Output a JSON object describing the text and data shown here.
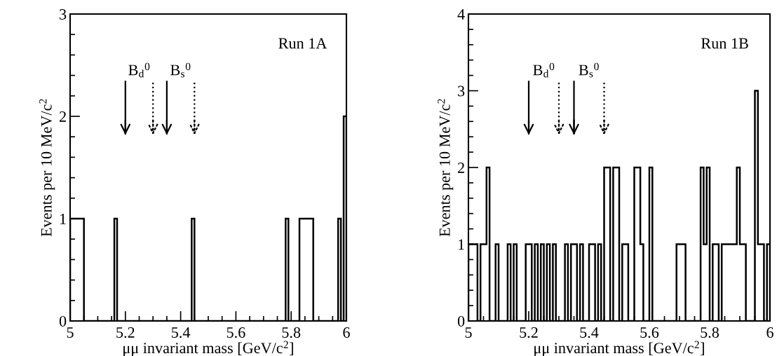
{
  "chart_data": [
    {
      "type": "histogram",
      "color": "#000000",
      "xlabel": "μμ invariant mass [GeV/c$^{2}$]",
      "ylabel": "Events per 10 MeV/c$^{2}$",
      "bins": [
        5.0,
        5.01,
        5.02,
        5.03,
        5.04,
        5.05,
        5.06,
        5.07,
        5.08,
        5.09,
        5.1,
        5.11,
        5.12,
        5.13,
        5.14,
        5.15,
        5.16,
        5.17,
        5.18,
        5.19,
        5.2,
        5.21,
        5.22,
        5.23,
        5.24,
        5.25,
        5.26,
        5.27,
        5.28,
        5.29,
        5.3,
        5.31,
        5.32,
        5.33,
        5.34,
        5.35,
        5.36,
        5.37,
        5.38,
        5.39,
        5.4,
        5.41,
        5.42,
        5.43,
        5.44,
        5.45,
        5.46,
        5.47,
        5.48,
        5.49,
        5.5,
        5.51,
        5.52,
        5.53,
        5.54,
        5.55,
        5.56,
        5.57,
        5.58,
        5.59,
        5.6,
        5.61,
        5.62,
        5.63,
        5.64,
        5.65,
        5.66,
        5.67,
        5.68,
        5.69,
        5.7,
        5.71,
        5.72,
        5.73,
        5.74,
        5.75,
        5.76,
        5.77,
        5.78,
        5.79,
        5.8,
        5.81,
        5.82,
        5.83,
        5.84,
        5.85,
        5.86,
        5.87,
        5.88,
        5.89,
        5.9,
        5.91,
        5.92,
        5.93,
        5.94,
        5.95,
        5.96,
        5.97,
        5.98,
        5.99,
        6.0
      ],
      "values": [
        1,
        1,
        1,
        1,
        1,
        0,
        0,
        0,
        0,
        0,
        0,
        0,
        0,
        0,
        0,
        0,
        1,
        0,
        0,
        0,
        0,
        0,
        0,
        0,
        0,
        0,
        0,
        0,
        0,
        0,
        0,
        0,
        0,
        0,
        0,
        0,
        0,
        0,
        0,
        0,
        0,
        0,
        0,
        0,
        1,
        0,
        0,
        0,
        0,
        0,
        0,
        0,
        0,
        0,
        0,
        0,
        0,
        0,
        0,
        0,
        0,
        0,
        0,
        0,
        0,
        0,
        0,
        0,
        0,
        0,
        0,
        0,
        0,
        0,
        0,
        0,
        0,
        0,
        1,
        0,
        0,
        0,
        0,
        1,
        1,
        1,
        1,
        1,
        0,
        0,
        0,
        0,
        0,
        0,
        0,
        0,
        0,
        1,
        0,
        2
      ],
      "xlim": [
        5,
        6
      ],
      "ylim": [
        0,
        3
      ],
      "xticks": [
        5,
        5.2,
        5.4,
        5.6,
        5.8,
        6
      ],
      "yticks": [
        0,
        1,
        2,
        3
      ],
      "ref_lines": [
        {
          "axis": "x",
          "value": 5.2,
          "line_style": "solid"
        },
        {
          "axis": "x",
          "value": 5.3,
          "line_style": "dotted"
        },
        {
          "axis": "x",
          "value": 5.35,
          "line_style": "solid"
        },
        {
          "axis": "x",
          "value": 5.45,
          "line_style": "dotted"
        }
      ],
      "annotations": [
        "Run 1A",
        "B$_{d}$$^{0}$",
        "B$_{s}$$^{0}$"
      ]
    },
    {
      "type": "histogram",
      "color": "#000000",
      "xlabel": "μμ invariant mass [GeV/c$^{2}$]",
      "ylabel": "Events per 10 MeV/c$^{2}$",
      "bins": [
        5.0,
        5.01,
        5.02,
        5.03,
        5.04,
        5.05,
        5.06,
        5.07,
        5.08,
        5.09,
        5.1,
        5.11,
        5.12,
        5.13,
        5.14,
        5.15,
        5.16,
        5.17,
        5.18,
        5.19,
        5.2,
        5.21,
        5.22,
        5.23,
        5.24,
        5.25,
        5.26,
        5.27,
        5.28,
        5.29,
        5.3,
        5.31,
        5.32,
        5.33,
        5.34,
        5.35,
        5.36,
        5.37,
        5.38,
        5.39,
        5.4,
        5.41,
        5.42,
        5.43,
        5.44,
        5.45,
        5.46,
        5.47,
        5.48,
        5.49,
        5.5,
        5.51,
        5.52,
        5.53,
        5.54,
        5.55,
        5.56,
        5.57,
        5.58,
        5.59,
        5.6,
        5.61,
        5.62,
        5.63,
        5.64,
        5.65,
        5.66,
        5.67,
        5.68,
        5.69,
        5.7,
        5.71,
        5.72,
        5.73,
        5.74,
        5.75,
        5.76,
        5.77,
        5.78,
        5.79,
        5.8,
        5.81,
        5.82,
        5.83,
        5.84,
        5.85,
        5.86,
        5.87,
        5.88,
        5.89,
        5.9,
        5.91,
        5.92,
        5.93,
        5.94,
        5.95,
        5.96,
        5.97,
        5.98,
        5.99,
        6.0
      ],
      "values": [
        1,
        1,
        1,
        0,
        1,
        1,
        2,
        0,
        0,
        1,
        0,
        0,
        0,
        1,
        0,
        1,
        0,
        0,
        0,
        1,
        1,
        0,
        1,
        0,
        1,
        0,
        1,
        0,
        1,
        0,
        0,
        0,
        1,
        0,
        1,
        1,
        0,
        1,
        0,
        0,
        1,
        1,
        0,
        1,
        0,
        2,
        2,
        0,
        2,
        2,
        0,
        1,
        1,
        0,
        0,
        2,
        2,
        1,
        0,
        0,
        2,
        0,
        0,
        0,
        0,
        0,
        0,
        0,
        0,
        1,
        1,
        1,
        0,
        0,
        0,
        0,
        0,
        2,
        1,
        2,
        0,
        1,
        1,
        0,
        1,
        1,
        1,
        1,
        1,
        2,
        1,
        1,
        0,
        0,
        0,
        3,
        1,
        1,
        0,
        1
      ],
      "xlim": [
        5,
        6
      ],
      "ylim": [
        0,
        4
      ],
      "xticks": [
        5,
        5.2,
        5.4,
        5.6,
        5.8,
        6
      ],
      "yticks": [
        0,
        1,
        2,
        3,
        4
      ],
      "ref_lines": [
        {
          "axis": "x",
          "value": 5.2,
          "line_style": "solid"
        },
        {
          "axis": "x",
          "value": 5.3,
          "line_style": "dotted"
        },
        {
          "axis": "x",
          "value": 5.35,
          "line_style": "solid"
        },
        {
          "axis": "x",
          "value": 5.45,
          "line_style": "dotted"
        }
      ],
      "annotations": [
        "Run 1B",
        "B$_{d}$$^{0}$",
        "B$_{s}$$^{0}$"
      ]
    }
  ]
}
